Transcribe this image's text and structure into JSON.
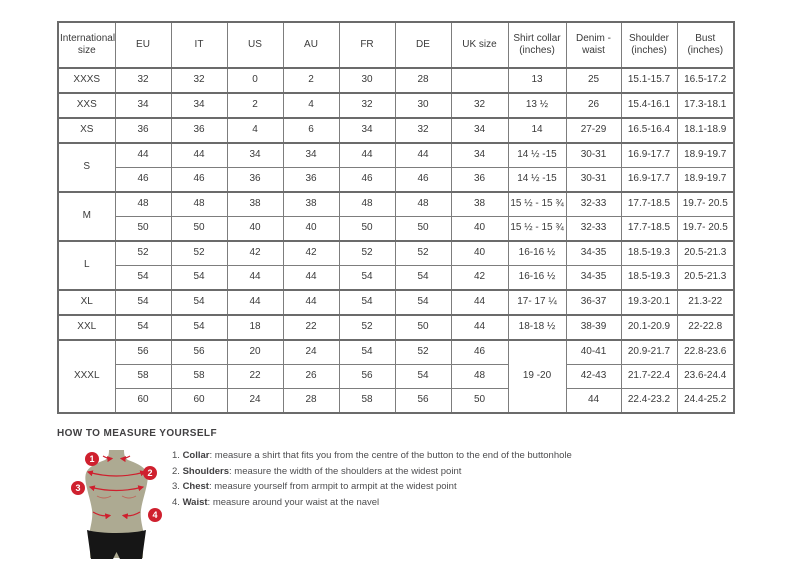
{
  "colors": {
    "accent_red": "#cf202e",
    "mannequin_body": "#adaa92",
    "mannequin_pants": "#161616",
    "table_border": "#7d7d7d",
    "text": "#3a3a3a"
  },
  "table": {
    "headers": [
      "International size",
      "EU",
      "IT",
      "US",
      "AU",
      "FR",
      "DE",
      "UK size",
      "Shirt collar (inches)",
      "Denim - waist",
      "Shoulder (inches)",
      "Bust (inches)"
    ],
    "rows": [
      {
        "cls": "gs",
        "cells": [
          {
            "t": "XXXS"
          },
          {
            "t": "32"
          },
          {
            "t": "32"
          },
          {
            "t": "0"
          },
          {
            "t": "2"
          },
          {
            "t": "30"
          },
          {
            "t": "28"
          },
          {
            "t": ""
          },
          {
            "t": "13"
          },
          {
            "t": "25"
          },
          {
            "t": "15.1-15.7"
          },
          {
            "t": "16.5-17.2"
          }
        ]
      },
      {
        "cls": "gs",
        "cells": [
          {
            "t": "XXS"
          },
          {
            "t": "34"
          },
          {
            "t": "34"
          },
          {
            "t": "2"
          },
          {
            "t": "4"
          },
          {
            "t": "32"
          },
          {
            "t": "30"
          },
          {
            "t": "32"
          },
          {
            "t": "13 ½"
          },
          {
            "t": "26"
          },
          {
            "t": "15.4-16.1"
          },
          {
            "t": "17.3-18.1"
          }
        ]
      },
      {
        "cls": "gs",
        "cells": [
          {
            "t": "XS"
          },
          {
            "t": "36"
          },
          {
            "t": "36"
          },
          {
            "t": "4"
          },
          {
            "t": "6"
          },
          {
            "t": "34"
          },
          {
            "t": "32"
          },
          {
            "t": "34"
          },
          {
            "t": "14"
          },
          {
            "t": "27-29"
          },
          {
            "t": "16.5-16.4"
          },
          {
            "t": "18.1-18.9"
          }
        ]
      },
      {
        "cls": "gs",
        "cells": [
          {
            "t": "S",
            "rs": 2
          },
          {
            "t": "44"
          },
          {
            "t": "44"
          },
          {
            "t": "34"
          },
          {
            "t": "34"
          },
          {
            "t": "44"
          },
          {
            "t": "44"
          },
          {
            "t": "34"
          },
          {
            "t": "14 ½ -15"
          },
          {
            "t": "30-31"
          },
          {
            "t": "16.9-17.7"
          },
          {
            "t": "18.9-19.7"
          }
        ]
      },
      {
        "cls": "sub",
        "cells": [
          {
            "t": "46"
          },
          {
            "t": "46"
          },
          {
            "t": "36"
          },
          {
            "t": "36"
          },
          {
            "t": "46"
          },
          {
            "t": "46"
          },
          {
            "t": "36"
          },
          {
            "t": "14 ½ -15"
          },
          {
            "t": "30-31"
          },
          {
            "t": "16.9-17.7"
          },
          {
            "t": "18.9-19.7"
          }
        ]
      },
      {
        "cls": "gs",
        "cells": [
          {
            "t": "M",
            "rs": 2
          },
          {
            "t": "48"
          },
          {
            "t": "48"
          },
          {
            "t": "38"
          },
          {
            "t": "38"
          },
          {
            "t": "48"
          },
          {
            "t": "48"
          },
          {
            "t": "38"
          },
          {
            "t": "15 ½ - 15 ¾"
          },
          {
            "t": "32-33"
          },
          {
            "t": "17.7-18.5"
          },
          {
            "t": "19.7- 20.5"
          }
        ]
      },
      {
        "cls": "sub",
        "cells": [
          {
            "t": "50"
          },
          {
            "t": "50"
          },
          {
            "t": "40"
          },
          {
            "t": "40"
          },
          {
            "t": "50"
          },
          {
            "t": "50"
          },
          {
            "t": "40"
          },
          {
            "t": "15 ½ - 15 ¾"
          },
          {
            "t": "32-33"
          },
          {
            "t": "17.7-18.5"
          },
          {
            "t": "19.7- 20.5"
          }
        ]
      },
      {
        "cls": "gs",
        "cells": [
          {
            "t": "L",
            "rs": 2
          },
          {
            "t": "52"
          },
          {
            "t": "52"
          },
          {
            "t": "42"
          },
          {
            "t": "42"
          },
          {
            "t": "52"
          },
          {
            "t": "52"
          },
          {
            "t": "40"
          },
          {
            "t": "16-16 ½"
          },
          {
            "t": "34-35"
          },
          {
            "t": "18.5-19.3"
          },
          {
            "t": "20.5-21.3"
          }
        ]
      },
      {
        "cls": "sub",
        "cells": [
          {
            "t": "54"
          },
          {
            "t": "54"
          },
          {
            "t": "44"
          },
          {
            "t": "44"
          },
          {
            "t": "54"
          },
          {
            "t": "54"
          },
          {
            "t": "42"
          },
          {
            "t": "16-16 ½"
          },
          {
            "t": "34-35"
          },
          {
            "t": "18.5-19.3"
          },
          {
            "t": "20.5-21.3"
          }
        ]
      },
      {
        "cls": "gs",
        "cells": [
          {
            "t": "XL"
          },
          {
            "t": "54"
          },
          {
            "t": "54"
          },
          {
            "t": "44"
          },
          {
            "t": "44"
          },
          {
            "t": "54"
          },
          {
            "t": "54"
          },
          {
            "t": "44"
          },
          {
            "t": "17- 17 ¼"
          },
          {
            "t": "36-37"
          },
          {
            "t": "19.3-20.1"
          },
          {
            "t": "21.3-22"
          }
        ]
      },
      {
        "cls": "gs",
        "cells": [
          {
            "t": "XXL"
          },
          {
            "t": "54"
          },
          {
            "t": "54"
          },
          {
            "t": "18"
          },
          {
            "t": "22"
          },
          {
            "t": "52"
          },
          {
            "t": "50"
          },
          {
            "t": "44"
          },
          {
            "t": "18-18 ½"
          },
          {
            "t": "38-39"
          },
          {
            "t": "20.1-20.9"
          },
          {
            "t": "22-22.8"
          }
        ]
      },
      {
        "cls": "gs",
        "cells": [
          {
            "t": "XXXL",
            "rs": 3
          },
          {
            "t": "56"
          },
          {
            "t": "56"
          },
          {
            "t": "20"
          },
          {
            "t": "24"
          },
          {
            "t": "54"
          },
          {
            "t": "52"
          },
          {
            "t": "46"
          },
          {
            "t": "19 -20",
            "rs": 3
          },
          {
            "t": "40-41"
          },
          {
            "t": "20.9-21.7"
          },
          {
            "t": "22.8-23.6"
          }
        ]
      },
      {
        "cls": "sub",
        "cells": [
          {
            "t": "58"
          },
          {
            "t": "58"
          },
          {
            "t": "22"
          },
          {
            "t": "26"
          },
          {
            "t": "56"
          },
          {
            "t": "54"
          },
          {
            "t": "48"
          },
          {
            "t": "42-43"
          },
          {
            "t": "21.7-22.4"
          },
          {
            "t": "23.6-24.4"
          }
        ]
      },
      {
        "cls": "sub",
        "cells": [
          {
            "t": "60"
          },
          {
            "t": "60"
          },
          {
            "t": "24"
          },
          {
            "t": "28"
          },
          {
            "t": "58"
          },
          {
            "t": "56"
          },
          {
            "t": "50"
          },
          {
            "t": "44"
          },
          {
            "t": "22.4-23.2"
          },
          {
            "t": "24.4-25.2"
          }
        ]
      }
    ]
  },
  "measure": {
    "title": "HOW TO MEASURE YOURSELF",
    "steps": [
      {
        "num": "1. ",
        "label": "Collar",
        "rest": ": measure a shirt that fits you from the centre of the button to the end of the buttonhole"
      },
      {
        "num": "2. ",
        "label": "Shoulders",
        "rest": ": measure the width of the shoulders at the widest point"
      },
      {
        "num": "3. ",
        "label": "Chest",
        "rest": ": measure yourself from armpit to armpit at the widest point"
      },
      {
        "num": "4. ",
        "label": "Waist",
        "rest": ": measure around your waist at the navel"
      }
    ],
    "badges": [
      "1",
      "2",
      "3",
      "4"
    ]
  }
}
